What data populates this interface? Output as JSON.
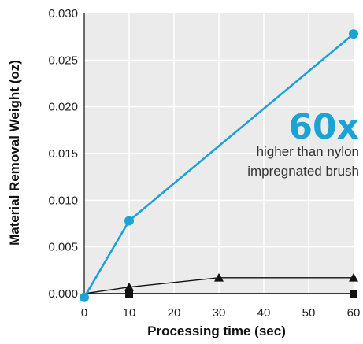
{
  "chart_data": {
    "type": "line",
    "xlabel": "Processing time (sec)",
    "ylabel": "Material Removal Weight (oz)",
    "xlim": [
      0,
      60
    ],
    "ylim": [
      0,
      0.03
    ],
    "x_ticks": [
      "0",
      "10",
      "20",
      "30",
      "40",
      "50",
      "60"
    ],
    "y_ticks": [
      "0.000",
      "0.005",
      "0.010",
      "0.015",
      "0.020",
      "0.025",
      "0.030"
    ],
    "grid": true,
    "background": "#ebebeb",
    "series": [
      {
        "marker": "circle",
        "color": "#1ba3d6",
        "x": [
          0,
          10,
          60
        ],
        "y": [
          -0.0004,
          0.0078,
          0.0278
        ]
      },
      {
        "marker": "triangle",
        "color": "#111111",
        "x": [
          0,
          10,
          30,
          60
        ],
        "y": [
          0.0,
          0.0007,
          0.0017,
          0.0017
        ]
      },
      {
        "marker": "square",
        "color": "#111111",
        "x": [
          0,
          10,
          60
        ],
        "y": [
          0.0,
          0.0,
          0.0
        ]
      }
    ],
    "annotation": {
      "big": "60x",
      "line1": "higher than nylon",
      "line2": "impregnated brush",
      "color": "#1ba3d6"
    }
  }
}
